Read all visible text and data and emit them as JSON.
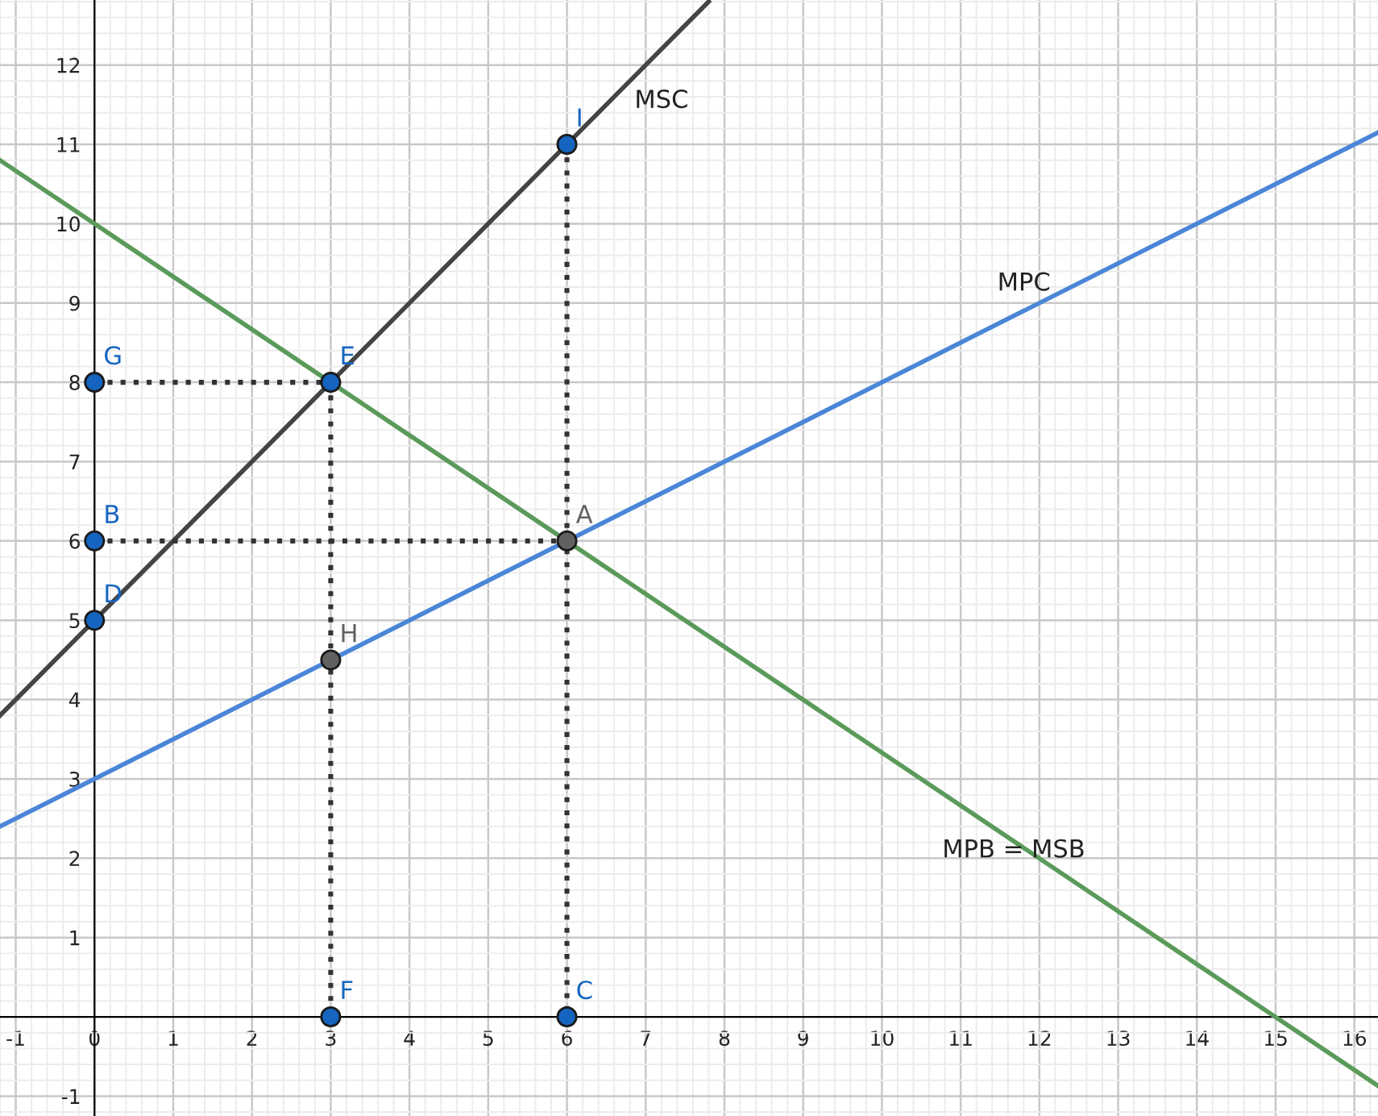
{
  "chart_data": {
    "type": "line",
    "xlim": [
      -1.2,
      16.3
    ],
    "ylim": [
      -1.25,
      12.82
    ],
    "xticks": [
      -1,
      0,
      1,
      2,
      3,
      4,
      5,
      6,
      7,
      8,
      9,
      10,
      11,
      12,
      13,
      14,
      15,
      16
    ],
    "yticks": [
      -1,
      1,
      2,
      3,
      4,
      5,
      6,
      7,
      8,
      9,
      10,
      11,
      12
    ],
    "grid": true,
    "marker": "none",
    "line_style": "solid",
    "series": [
      {
        "name": "MSC",
        "color": "#444444",
        "x": [
          -1.2,
          7.8
        ],
        "values": [
          3.8,
          12.8
        ]
      },
      {
        "name": "MPC",
        "color": "#4a86d8",
        "x": [
          -1.2,
          16.3
        ],
        "values": [
          2.4,
          11.15
        ]
      },
      {
        "name": "MPB = MSB",
        "color": "#5a9a5a",
        "x": [
          -1.2,
          16.3
        ],
        "values": [
          10.8,
          -0.87
        ]
      },
      {
        "color": "#333333",
        "line_style": "dotted",
        "x": [
          0,
          3
        ],
        "values": [
          8,
          8
        ]
      },
      {
        "color": "#333333",
        "line_style": "dotted",
        "x": [
          3,
          3
        ],
        "values": [
          8,
          0
        ]
      },
      {
        "color": "#333333",
        "line_style": "dotted",
        "x": [
          0,
          6
        ],
        "values": [
          6,
          6
        ]
      },
      {
        "color": "#333333",
        "line_style": "dotted",
        "x": [
          6,
          6
        ],
        "values": [
          11,
          0
        ]
      },
      {
        "type": "scatter",
        "color": "#1565c0",
        "marker": "circle",
        "x": [
          0,
          0,
          0,
          3,
          6,
          3,
          6
        ],
        "values": [
          8,
          6,
          5,
          8,
          11,
          0,
          0
        ]
      },
      {
        "type": "scatter",
        "color": "#616161",
        "marker": "circle",
        "x": [
          6,
          3
        ],
        "values": [
          6,
          4.5
        ]
      }
    ],
    "annotations": [
      {
        "text": "G",
        "x": 0,
        "y": 8
      },
      {
        "text": "B",
        "x": 0,
        "y": 6
      },
      {
        "text": "D",
        "x": 0,
        "y": 5
      },
      {
        "text": "E",
        "x": 3,
        "y": 8
      },
      {
        "text": "I",
        "x": 6,
        "y": 11
      },
      {
        "text": "F",
        "x": 3,
        "y": 0
      },
      {
        "text": "C",
        "x": 6,
        "y": 0
      },
      {
        "text": "A",
        "x": 6,
        "y": 6
      },
      {
        "text": "H",
        "x": 3,
        "y": 4.5
      }
    ]
  }
}
